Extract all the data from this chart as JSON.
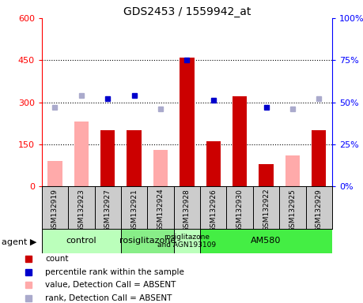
{
  "title": "GDS2453 / 1559942_at",
  "samples": [
    "GSM132919",
    "GSM132923",
    "GSM132927",
    "GSM132921",
    "GSM132924",
    "GSM132928",
    "GSM132926",
    "GSM132930",
    "GSM132922",
    "GSM132925",
    "GSM132929"
  ],
  "groups": [
    {
      "label": "control",
      "span": [
        0,
        3
      ],
      "color": "#bbffbb"
    },
    {
      "label": "rosiglitazone",
      "span": [
        3,
        5
      ],
      "color": "#88ee88"
    },
    {
      "label": "rosiglitazone\nand AGN193109",
      "span": [
        5,
        6
      ],
      "color": "#bbffbb"
    },
    {
      "label": "AM580",
      "span": [
        6,
        11
      ],
      "color": "#44ee44"
    }
  ],
  "count_present": [
    null,
    null,
    200,
    200,
    null,
    460,
    160,
    320,
    80,
    null,
    200
  ],
  "count_absent": [
    90,
    230,
    null,
    null,
    null,
    null,
    null,
    null,
    null,
    null,
    null
  ],
  "value_absent": [
    null,
    null,
    null,
    null,
    130,
    null,
    null,
    null,
    null,
    110,
    null
  ],
  "rank_present": [
    null,
    null,
    52,
    54,
    null,
    75,
    51,
    null,
    47,
    null,
    null
  ],
  "rank_absent": [
    47,
    54,
    null,
    null,
    46,
    null,
    null,
    null,
    null,
    46,
    52
  ],
  "ylim_left": [
    0,
    600
  ],
  "ylim_right": [
    0,
    100
  ],
  "yticks_left": [
    0,
    150,
    300,
    450,
    600
  ],
  "yticks_right": [
    0,
    25,
    50,
    75,
    100
  ],
  "count_color": "#cc0000",
  "count_absent_color": "#ffaaaa",
  "rank_color": "#0000cc",
  "rank_absent_color": "#aaaacc",
  "legend_items": [
    {
      "color": "#cc0000",
      "label": "count"
    },
    {
      "color": "#0000cc",
      "label": "percentile rank within the sample"
    },
    {
      "color": "#ffaaaa",
      "label": "value, Detection Call = ABSENT"
    },
    {
      "color": "#aaaacc",
      "label": "rank, Detection Call = ABSENT"
    }
  ]
}
